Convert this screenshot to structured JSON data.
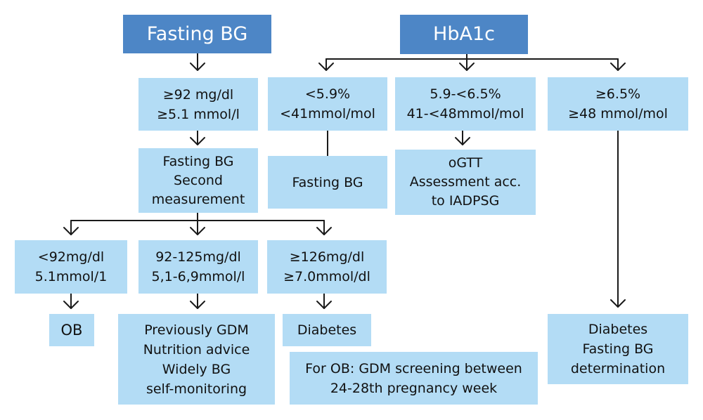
{
  "fasting_bg": {
    "header": "Fasting BG",
    "threshold": [
      "≥92 mg/dl",
      "≥5.1 mmol/l"
    ],
    "second": [
      "Fasting BG",
      "Second",
      "measurement"
    ],
    "low": [
      "<92mg/dl",
      "5.1mmol/1"
    ],
    "mid": [
      "92-125mg/dl",
      "5,1-6,9mmol/l"
    ],
    "high": [
      "≥126mg/dl",
      "≥7.0mmol/dl"
    ],
    "ob": "OB",
    "previously_gdm": [
      "Previously GDM",
      "Nutrition advice",
      "Widely BG",
      "self-monitoring"
    ],
    "diabetes": "Diabetes",
    "ob_note": [
      "For OB: GDM screening between",
      "24-28th pregnancy week"
    ]
  },
  "hba1c": {
    "header": "HbA1c",
    "low": [
      "<5.9%",
      "<41mmol/mol"
    ],
    "mid": [
      "5.9-<6.5%",
      "41-<48mmol/mol"
    ],
    "high": [
      "≥6.5%",
      "≥48 mmol/mol"
    ],
    "low_result": "Fasting BG",
    "mid_result": [
      "oGTT",
      "Assessment acc.",
      "to IADPSG"
    ],
    "high_result": [
      "Diabetes",
      "Fasting BG",
      "determination"
    ]
  },
  "colors": {
    "header_fill": "#4d86c6",
    "box_fill": "#b3dcf5",
    "line": "#1a1a1a"
  }
}
